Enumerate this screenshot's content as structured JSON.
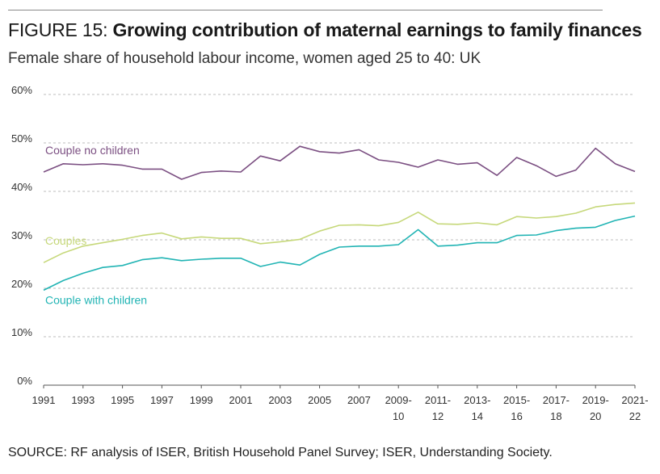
{
  "header": {
    "figure_label": "FIGURE 15:",
    "title": "Growing contribution of maternal earnings to family finances",
    "subtitle": "Female share of household labour income, women aged 25 to 40: UK"
  },
  "source": "SOURCE: RF analysis of ISER, British Household Panel Survey; ISER, Understanding Society.",
  "chart_data": {
    "type": "line",
    "title": "Female share of household labour income, women aged 25 to 40: UK",
    "xlabel": "",
    "ylabel": "",
    "ylim": [
      0,
      60
    ],
    "yticks": [
      "0%",
      "10%",
      "20%",
      "30%",
      "40%",
      "50%",
      "60%"
    ],
    "grid": "horizontal dashed",
    "x": [
      "1991",
      "1992",
      "1993",
      "1994",
      "1995",
      "1996",
      "1997",
      "1998",
      "1999",
      "2000",
      "2001",
      "2002",
      "2003",
      "2004",
      "2005",
      "2006",
      "2007",
      "2008",
      "2009-10",
      "2010-11",
      "2011-12",
      "2012-13",
      "2013-14",
      "2014-15",
      "2015-16",
      "2016-17",
      "2017-18",
      "2018-19",
      "2019-20",
      "2020-21",
      "2021-22"
    ],
    "xtick_labels": [
      {
        "line1": "1991",
        "line2": "",
        "index": 0
      },
      {
        "line1": "1993",
        "line2": "",
        "index": 2
      },
      {
        "line1": "1995",
        "line2": "",
        "index": 4
      },
      {
        "line1": "1997",
        "line2": "",
        "index": 6
      },
      {
        "line1": "1999",
        "line2": "",
        "index": 8
      },
      {
        "line1": "2001",
        "line2": "",
        "index": 10
      },
      {
        "line1": "2003",
        "line2": "",
        "index": 12
      },
      {
        "line1": "2005",
        "line2": "",
        "index": 14
      },
      {
        "line1": "2007",
        "line2": "",
        "index": 16
      },
      {
        "line1": "2009-",
        "line2": "10",
        "index": 18
      },
      {
        "line1": "2011-",
        "line2": "12",
        "index": 20
      },
      {
        "line1": "2013-",
        "line2": "14",
        "index": 22
      },
      {
        "line1": "2015-",
        "line2": "16",
        "index": 24
      },
      {
        "line1": "2017-",
        "line2": "18",
        "index": 26
      },
      {
        "line1": "2019-",
        "line2": "20",
        "index": 28
      },
      {
        "line1": "2021-",
        "line2": "22",
        "index": 30
      }
    ],
    "series": [
      {
        "name": "Couple no children",
        "color": "#7b4f82",
        "label_anchor": "above-start",
        "values": [
          44.0,
          45.7,
          45.5,
          45.7,
          45.4,
          44.6,
          44.6,
          42.5,
          43.9,
          44.2,
          44.0,
          47.3,
          46.3,
          49.3,
          48.2,
          47.9,
          48.6,
          46.5,
          46.0,
          45.0,
          46.5,
          45.6,
          45.9,
          43.3,
          47.0,
          45.3,
          43.1,
          44.4,
          48.9,
          45.7,
          44.1
        ]
      },
      {
        "name": "Couples",
        "color": "#c6d87a",
        "label_anchor": "above-start",
        "values": [
          25.3,
          27.3,
          28.7,
          29.4,
          30.1,
          30.9,
          31.4,
          30.2,
          30.6,
          30.3,
          30.3,
          29.2,
          29.6,
          30.1,
          31.8,
          33.0,
          33.1,
          32.9,
          33.6,
          35.7,
          33.3,
          33.2,
          33.5,
          33.1,
          34.8,
          34.5,
          34.8,
          35.5,
          36.8,
          37.3,
          37.6
        ]
      },
      {
        "name": "Couple with children",
        "color": "#21b4b4",
        "label_anchor": "below-start",
        "values": [
          19.6,
          21.6,
          23.1,
          24.3,
          24.7,
          25.9,
          26.3,
          25.7,
          26.0,
          26.2,
          26.2,
          24.5,
          25.4,
          24.8,
          27.0,
          28.5,
          28.7,
          28.7,
          29.0,
          32.1,
          28.7,
          28.9,
          29.4,
          29.4,
          30.9,
          31.0,
          31.9,
          32.4,
          32.6,
          34.0,
          34.9
        ]
      }
    ]
  }
}
